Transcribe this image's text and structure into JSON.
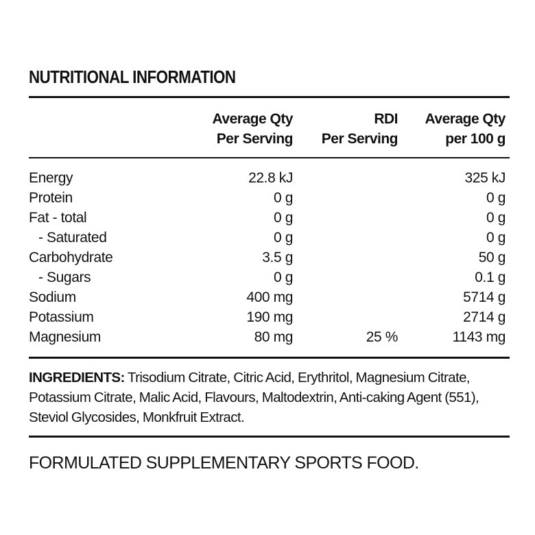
{
  "title": "NUTRITIONAL INFORMATION",
  "columns": [
    {
      "line1": "Average Qty",
      "line2": "Per Serving"
    },
    {
      "line1": "RDI",
      "line2": "Per Serving"
    },
    {
      "line1": "Average Qty",
      "line2": "per 100 g"
    }
  ],
  "rows": [
    {
      "name": "Energy",
      "per_serving": "22.8 kJ",
      "rdi": "",
      "per_100g": "325 kJ"
    },
    {
      "name": "Protein",
      "per_serving": "0 g",
      "rdi": "",
      "per_100g": "0 g"
    },
    {
      "name": "Fat - total",
      "per_serving": "0 g",
      "rdi": "",
      "per_100g": "0 g"
    },
    {
      "name": "- Saturated",
      "per_serving": "0 g",
      "rdi": "",
      "per_100g": "0 g"
    },
    {
      "name": "Carbohydrate",
      "per_serving": "3.5 g",
      "rdi": "",
      "per_100g": "50 g"
    },
    {
      "name": "- Sugars",
      "per_serving": "0 g",
      "rdi": "",
      "per_100g": "0.1 g"
    },
    {
      "name": "Sodium",
      "per_serving": "400 mg",
      "rdi": "",
      "per_100g": "5714 g"
    },
    {
      "name": "Potassium",
      "per_serving": "190 mg",
      "rdi": "",
      "per_100g": "2714 g"
    },
    {
      "name": "Magnesium",
      "per_serving": "80 mg",
      "rdi": "25 %",
      "per_100g": "1143 mg"
    }
  ],
  "ingredients": {
    "label": "INGREDIENTS:",
    "text": " Trisodium Citrate, Citric Acid, Erythritol, Magnesium Citrate, Potassium Citrate, Malic Acid, Flavours, Maltodextrin, Anti-caking Agent (551), Steviol Glycosides, Monkfruit Extract."
  },
  "statement": "FORMULATED SUPPLEMENTARY SPORTS FOOD."
}
